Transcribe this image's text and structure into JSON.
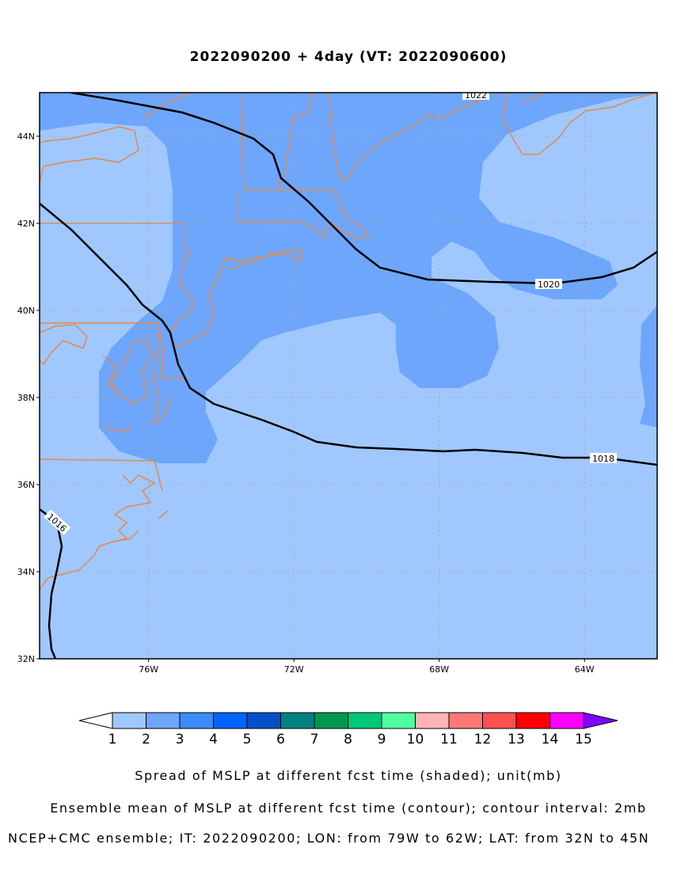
{
  "chart_data": {
    "type": "map",
    "title": "2022090200 + 4day (VT: 2022090600)",
    "xlim": [
      -79,
      -62
    ],
    "ylim": [
      32,
      45
    ],
    "xticks": [
      {
        "value": -76,
        "label": "76W"
      },
      {
        "value": -72,
        "label": "72W"
      },
      {
        "value": -68,
        "label": "68W"
      },
      {
        "value": -64,
        "label": "64W"
      }
    ],
    "yticks": [
      {
        "value": 32,
        "label": "32N"
      },
      {
        "value": 34,
        "label": "34N"
      },
      {
        "value": 36,
        "label": "36N"
      },
      {
        "value": 38,
        "label": "38N"
      },
      {
        "value": 40,
        "label": "40N"
      },
      {
        "value": 42,
        "label": "42N"
      },
      {
        "value": 44,
        "label": "44N"
      }
    ],
    "grid": true,
    "contours": [
      1022,
      1020,
      1018,
      1016
    ],
    "colorbar": {
      "levels": [
        1,
        2,
        3,
        4,
        5,
        6,
        7,
        8,
        9,
        10,
        11,
        12,
        13,
        14,
        15
      ],
      "colors": [
        "#a0c8ff",
        "#6ea6fc",
        "#3c8cf8",
        "#0064ff",
        "#0050c8",
        "#008080",
        "#009650",
        "#00c878",
        "#50ffa0",
        "#ffb4b4",
        "#ff7878",
        "#ff5050",
        "#ff0000",
        "#ff00ff"
      ],
      "under_color": "#ffffff",
      "over_color": "#8000ff"
    },
    "notes": [
      "Spread of MSLP at different fcst time (shaded); unit(mb)",
      "Ensemble mean of MSLP at different fcst time (contour); contour interval: 2mb",
      "NCEP+CMC ensemble; IT: 2022090200; LON: from 79W to 62W; LAT: from 32N to 45N"
    ]
  }
}
